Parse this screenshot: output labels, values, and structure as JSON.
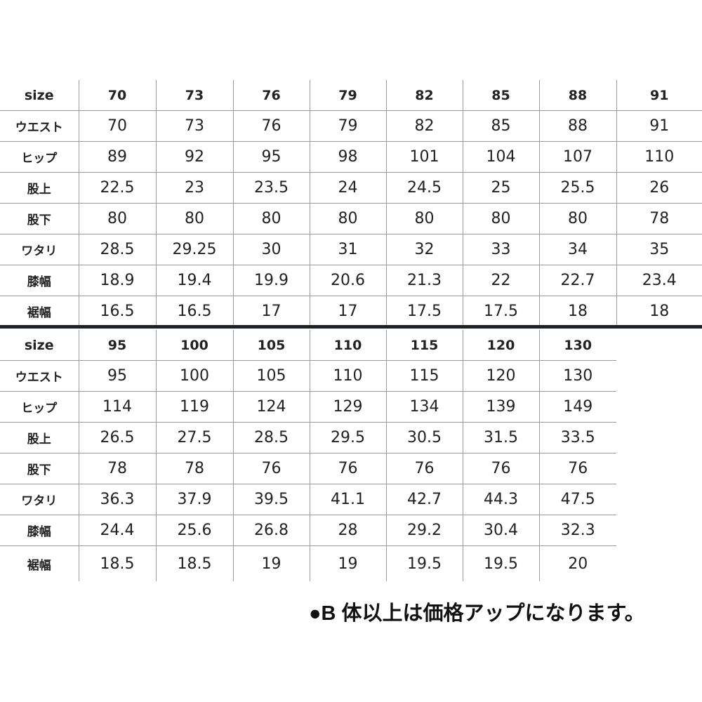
{
  "row_labels": [
    "size",
    "ウエスト",
    "ヒップ",
    "股上",
    "股下",
    "ワタリ",
    "膝幅",
    "裾幅"
  ],
  "table1": {
    "sizes": [
      "70",
      "73",
      "76",
      "79",
      "82",
      "85",
      "88",
      "91"
    ],
    "rows": [
      [
        "70",
        "73",
        "76",
        "79",
        "82",
        "85",
        "88",
        "91"
      ],
      [
        "89",
        "92",
        "95",
        "98",
        "101",
        "104",
        "107",
        "110"
      ],
      [
        "22.5",
        "23",
        "23.5",
        "24",
        "24.5",
        "25",
        "25.5",
        "26"
      ],
      [
        "80",
        "80",
        "80",
        "80",
        "80",
        "80",
        "80",
        "78"
      ],
      [
        "28.5",
        "29.25",
        "30",
        "31",
        "32",
        "33",
        "34",
        "35"
      ],
      [
        "18.9",
        "19.4",
        "19.9",
        "20.6",
        "21.3",
        "22",
        "22.7",
        "23.4"
      ],
      [
        "16.5",
        "16.5",
        "17",
        "17",
        "17.5",
        "17.5",
        "18",
        "18"
      ]
    ]
  },
  "table2": {
    "sizes": [
      "95",
      "100",
      "105",
      "110",
      "115",
      "120",
      "130"
    ],
    "rows": [
      [
        "95",
        "100",
        "105",
        "110",
        "115",
        "120",
        "130"
      ],
      [
        "114",
        "119",
        "124",
        "129",
        "134",
        "139",
        "149"
      ],
      [
        "26.5",
        "27.5",
        "28.5",
        "29.5",
        "30.5",
        "31.5",
        "33.5"
      ],
      [
        "78",
        "78",
        "76",
        "76",
        "76",
        "76",
        "76"
      ],
      [
        "36.3",
        "37.9",
        "39.5",
        "41.1",
        "42.7",
        "44.3",
        "47.5"
      ],
      [
        "24.4",
        "25.6",
        "26.8",
        "28",
        "29.2",
        "30.4",
        "32.3"
      ],
      [
        "18.5",
        "18.5",
        "19",
        "19",
        "19.5",
        "19.5",
        "20"
      ]
    ]
  },
  "note": "●B 体以上は価格アップになります。",
  "colors": {
    "divider": "#1f2328",
    "grid": "#9a9a9a",
    "text": "#222222"
  }
}
